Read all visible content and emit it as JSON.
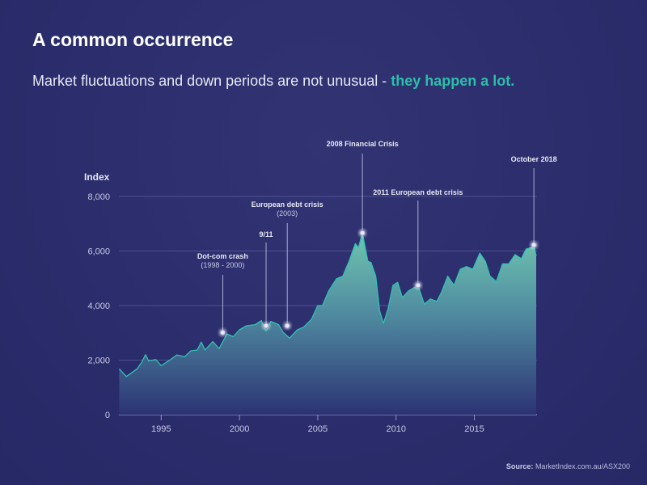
{
  "header": {
    "title": "A common occurrence",
    "subtitle_plain": "Market fluctuations and down periods are not unusual - ",
    "subtitle_highlight": "they happen a lot."
  },
  "source": {
    "label": "Source:",
    "text": "MarketIndex.com.au/ASX200"
  },
  "colors": {
    "background": "#2b2d6c",
    "accent": "#2bbfa8",
    "line": "#2ec4b0",
    "fill_top": "#6cc0ac",
    "fill_bottom": "#2c3374"
  },
  "chart_data": {
    "type": "area",
    "title": "",
    "xlabel": "",
    "ylabel": "Index",
    "xlim": [
      1992.3,
      2019.0
    ],
    "ylim": [
      0,
      8000
    ],
    "grid": true,
    "yticks": [
      0,
      2000,
      4000,
      6000,
      8000
    ],
    "ytick_labels": [
      "0",
      "2,000",
      "4,000",
      "6,000",
      "8,000"
    ],
    "xticks": [
      1995,
      2000,
      2005,
      2010,
      2015
    ],
    "xtick_labels": [
      "1995",
      "2000",
      "2005",
      "2010",
      "2015"
    ],
    "x": [
      1992.32,
      1992.78,
      1993.46,
      1993.76,
      1994.0,
      1994.2,
      1994.65,
      1995.0,
      1995.6,
      1996.0,
      1996.5,
      1996.9,
      1997.3,
      1997.56,
      1997.8,
      1998.3,
      1998.7,
      1999.2,
      1999.6,
      2000.0,
      2000.45,
      2001.0,
      2001.4,
      2001.7,
      2002.0,
      2002.5,
      2002.8,
      2003.2,
      2003.7,
      2004.1,
      2004.6,
      2005.0,
      2005.3,
      2005.7,
      2006.2,
      2006.6,
      2007.0,
      2007.4,
      2007.6,
      2007.85,
      2008.2,
      2008.4,
      2008.7,
      2008.95,
      2009.2,
      2009.5,
      2009.8,
      2010.1,
      2010.4,
      2010.8,
      2011.4,
      2011.8,
      2012.2,
      2012.6,
      2012.9,
      2013.3,
      2013.7,
      2014.1,
      2014.5,
      2014.9,
      2015.35,
      2015.7,
      2016.0,
      2016.4,
      2016.8,
      2017.2,
      2017.6,
      2018.0,
      2018.3,
      2018.6,
      2018.8,
      2018.95
    ],
    "values": [
      1680,
      1400,
      1680,
      1920,
      2200,
      1970,
      2020,
      1800,
      2020,
      2190,
      2120,
      2340,
      2370,
      2660,
      2370,
      2680,
      2420,
      2960,
      2860,
      3110,
      3260,
      3300,
      3450,
      3060,
      3420,
      3300,
      3010,
      2810,
      3110,
      3210,
      3500,
      4000,
      4000,
      4540,
      4980,
      5080,
      5620,
      6270,
      6120,
      6660,
      5620,
      5580,
      5080,
      3800,
      3350,
      3900,
      4740,
      4850,
      4290,
      4540,
      4740,
      4050,
      4240,
      4150,
      4490,
      5080,
      4740,
      5330,
      5430,
      5330,
      5920,
      5620,
      5080,
      4880,
      5530,
      5530,
      5870,
      5720,
      6070,
      6120,
      6220,
      5820
    ],
    "annotations": [
      {
        "label": "Dot-com crash",
        "sublabel": "(1998 - 2000)",
        "x": 1998.93,
        "y": 3010
      },
      {
        "label": "9/11",
        "sublabel": "",
        "x": 2001.7,
        "y": 3260
      },
      {
        "label": "European debt crisis",
        "sublabel": "(2003)",
        "x": 2003.05,
        "y": 3260
      },
      {
        "label": "2008 Financial Crisis",
        "sublabel": "",
        "x": 2007.85,
        "y": 6660
      },
      {
        "label": "2011 European debt crisis",
        "sublabel": "",
        "x": 2011.4,
        "y": 4740
      },
      {
        "label": "October 2018",
        "sublabel": "",
        "x": 2018.8,
        "y": 6220
      }
    ]
  }
}
